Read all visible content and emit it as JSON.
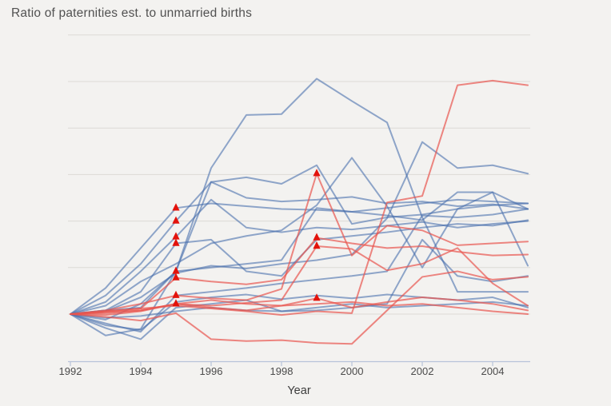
{
  "title": "Ratio of paternities est. to unmarried births",
  "x_axis": {
    "label": "Year",
    "ticks": [
      1992,
      1994,
      1996,
      1998,
      2000,
      2002,
      2004
    ],
    "range": [
      1992,
      2005
    ]
  },
  "y_axis": {
    "labels_shown": false,
    "gridline_values": [
      1.0,
      1.5,
      2.0,
      2.5,
      3.0,
      3.5,
      4.0
    ],
    "range": [
      0.47,
      4.0
    ]
  },
  "colors": {
    "background": "#f3f2f0",
    "gridline": "#dcdad6",
    "axis": "#b7c3d9",
    "blue": "#4a6fae",
    "red": "#e8554e",
    "marker": "#e3120b",
    "title_text": "#515151",
    "tick_text": "#4b4b4b"
  },
  "chart_data": {
    "type": "line",
    "title": "Ratio of paternities est. to unmarried births",
    "xlabel": "Year",
    "ylabel": "",
    "x": [
      1992,
      1993,
      1994,
      1995,
      1996,
      1997,
      1998,
      1999,
      2000,
      2001,
      2002,
      2003,
      2004,
      2005
    ],
    "baseline_value": 1.0,
    "marker_symbol": "triangle-up",
    "legend": "none",
    "series": [
      {
        "id": "blue-01",
        "color": "blue",
        "values": [
          1.0,
          1.04,
          1.07,
          1.46,
          2.57,
          3.14,
          3.15,
          3.53,
          3.29,
          3.06,
          2.04,
          1.24,
          1.24,
          1.24
        ],
        "marker_years": [
          1995
        ]
      },
      {
        "id": "blue-02",
        "color": "blue",
        "values": [
          1.0,
          1.03,
          1.18,
          1.44,
          1.52,
          1.49,
          1.54,
          1.58,
          1.64,
          2.03,
          2.85,
          2.57,
          2.6,
          2.51
        ],
        "marker_years": []
      },
      {
        "id": "blue-03",
        "color": "blue",
        "values": [
          1.0,
          1.09,
          1.35,
          1.54,
          1.76,
          1.84,
          1.9,
          2.17,
          2.68,
          2.16,
          1.5,
          2.13,
          2.31,
          2.13
        ],
        "marker_years": []
      },
      {
        "id": "blue-04",
        "color": "blue",
        "values": [
          1.0,
          1.28,
          1.71,
          2.14,
          2.19,
          2.16,
          2.13,
          2.12,
          2.1,
          2.14,
          2.19,
          2.23,
          2.21,
          2.19
        ],
        "marker_years": [
          1995
        ]
      },
      {
        "id": "blue-05",
        "color": "blue",
        "values": [
          1.0,
          1.2,
          1.54,
          2.0,
          2.42,
          2.47,
          2.4,
          2.6,
          1.97,
          2.04,
          2.07,
          2.13,
          2.17,
          2.19
        ],
        "marker_years": [
          1995
        ]
      },
      {
        "id": "blue-06",
        "color": "blue",
        "values": [
          1.0,
          1.13,
          1.46,
          1.83,
          2.23,
          1.93,
          1.88,
          1.93,
          1.91,
          1.95,
          1.99,
          1.93,
          1.97,
          2.0
        ],
        "marker_years": [
          1995
        ]
      },
      {
        "id": "blue-07",
        "color": "blue",
        "values": [
          1.0,
          1.04,
          1.24,
          1.76,
          1.8,
          1.46,
          1.41,
          1.8,
          1.84,
          1.88,
          1.93,
          1.97,
          1.95,
          2.01
        ],
        "marker_years": [
          1995
        ]
      },
      {
        "id": "blue-08",
        "color": "blue",
        "values": [
          1.0,
          0.94,
          1.11,
          1.46,
          1.5,
          1.54,
          1.58,
          2.14,
          2.1,
          2.06,
          2.01,
          2.31,
          2.31,
          1.52
        ],
        "marker_years": []
      },
      {
        "id": "blue-09",
        "color": "blue",
        "values": [
          1.0,
          0.9,
          0.81,
          1.2,
          1.24,
          1.28,
          1.33,
          1.37,
          1.41,
          1.46,
          2.06,
          2.04,
          2.07,
          2.13
        ],
        "marker_years": [
          1995
        ]
      },
      {
        "id": "blue-10",
        "color": "blue",
        "values": [
          1.0,
          0.77,
          0.84,
          1.46,
          2.42,
          2.25,
          2.21,
          2.23,
          2.26,
          2.19,
          2.21,
          2.16,
          2.18,
          2.13
        ],
        "marker_years": []
      },
      {
        "id": "blue-11",
        "color": "blue",
        "values": [
          1.0,
          0.85,
          0.73,
          1.07,
          1.11,
          1.15,
          1.03,
          1.04,
          1.07,
          1.11,
          1.8,
          1.41,
          1.35,
          1.41
        ],
        "marker_years": []
      },
      {
        "id": "blue-12",
        "color": "blue",
        "values": [
          1.0,
          0.96,
          0.98,
          1.03,
          1.07,
          1.04,
          1.03,
          1.07,
          1.11,
          1.07,
          1.09,
          1.11,
          1.13,
          1.09
        ],
        "marker_years": []
      },
      {
        "id": "blue-13",
        "color": "blue",
        "values": [
          1.0,
          0.88,
          0.83,
          1.13,
          1.18,
          1.21,
          1.16,
          1.2,
          1.17,
          1.21,
          1.18,
          1.15,
          1.18,
          1.07
        ],
        "marker_years": []
      },
      {
        "id": "red-01",
        "color": "red",
        "values": [
          1.0,
          1.03,
          1.06,
          1.09,
          1.06,
          1.03,
          0.99,
          1.03,
          1.01,
          2.2,
          2.27,
          3.46,
          3.51,
          3.46
        ],
        "marker_years": []
      },
      {
        "id": "red-02",
        "color": "red",
        "values": [
          1.0,
          1.04,
          1.11,
          1.2,
          1.17,
          1.15,
          1.27,
          2.51,
          1.63,
          1.95,
          1.9,
          1.74,
          1.76,
          1.78
        ],
        "marker_years": [
          1999
        ]
      },
      {
        "id": "red-03",
        "color": "red",
        "values": [
          1.0,
          1.03,
          1.06,
          1.39,
          1.35,
          1.32,
          1.37,
          1.82,
          1.76,
          1.71,
          1.73,
          1.67,
          1.63,
          1.64
        ],
        "marker_years": [
          1995,
          1999
        ]
      },
      {
        "id": "red-04",
        "color": "red",
        "values": [
          1.0,
          0.99,
          1.03,
          1.11,
          1.07,
          1.04,
          1.09,
          1.17,
          1.07,
          1.13,
          1.18,
          1.15,
          1.11,
          1.04
        ],
        "marker_years": [
          1999
        ]
      },
      {
        "id": "red-05",
        "color": "red",
        "values": [
          1.0,
          1.02,
          1.04,
          1.11,
          1.09,
          1.12,
          1.15,
          1.73,
          1.7,
          1.47,
          1.54,
          1.71,
          1.33,
          1.09
        ],
        "marker_years": [
          1999
        ]
      },
      {
        "id": "red-06",
        "color": "red",
        "values": [
          1.0,
          1.01,
          1.04,
          1.11,
          1.15,
          1.11,
          1.09,
          1.11,
          1.13,
          1.09,
          1.11,
          1.07,
          1.03,
          1.0
        ],
        "marker_years": [
          1995
        ]
      },
      {
        "id": "red-07",
        "color": "red",
        "values": [
          1.0,
          0.97,
          0.93,
          1.01,
          0.73,
          0.71,
          0.72,
          0.69,
          0.68,
          1.04,
          1.4,
          1.46,
          1.37,
          1.4
        ],
        "marker_years": []
      }
    ]
  }
}
